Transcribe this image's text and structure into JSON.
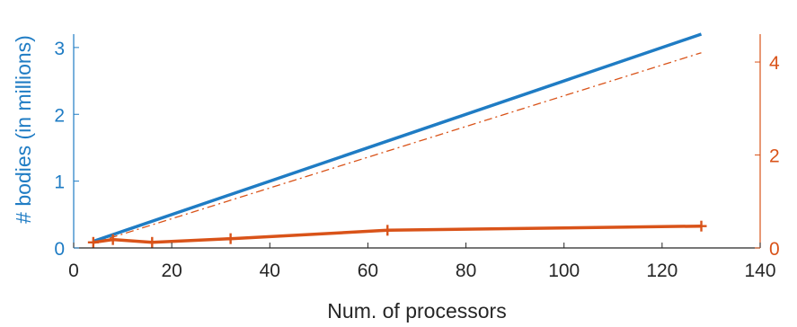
{
  "chart_data": {
    "type": "line",
    "title": "",
    "xlabel": "Num. of processors",
    "ylabel": "# bodies (in millions)",
    "ylabel_right": "",
    "xlim": [
      0,
      140
    ],
    "ylim": [
      0,
      3.2
    ],
    "ylim_right": [
      0,
      4.6
    ],
    "x_ticks": [
      0,
      20,
      40,
      60,
      80,
      100,
      120,
      140
    ],
    "x_tick_labels": [
      "0",
      "20",
      "40",
      "60",
      "80",
      "100",
      "120",
      "140"
    ],
    "y_ticks": [
      0,
      1,
      2,
      3
    ],
    "y_tick_labels": [
      "0",
      "1",
      "2",
      "3"
    ],
    "y_ticks_right": [
      0,
      2,
      4
    ],
    "y_tick_labels_right": [
      "0",
      "2",
      "4"
    ],
    "grid": false,
    "colors": {
      "left_axis": "#1f7cc4",
      "right_axis": "#d95319",
      "axis": "#262626"
    },
    "series": [
      {
        "axis": "left",
        "style": "solid",
        "color": "#1f7cc4",
        "x": [
          4,
          128
        ],
        "y": [
          0.1,
          3.2
        ]
      },
      {
        "axis": "right",
        "style": "dash-dot",
        "color": "#d95319",
        "x": [
          4,
          128
        ],
        "y": [
          0.1,
          4.2
        ]
      },
      {
        "axis": "right",
        "style": "solid",
        "marker": "plus",
        "color": "#d95319",
        "x": [
          4,
          8,
          16,
          32,
          64,
          128
        ],
        "y": [
          0.12,
          0.18,
          0.12,
          0.2,
          0.38,
          0.47
        ]
      }
    ]
  }
}
